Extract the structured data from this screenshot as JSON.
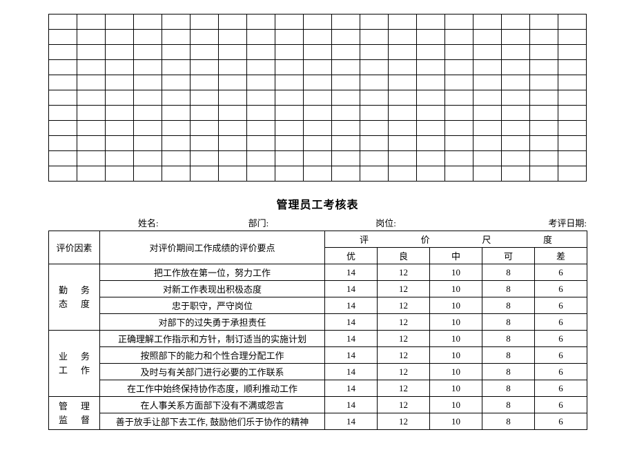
{
  "emptyGrid": {
    "rows": 11,
    "cols": 19,
    "border_color": "#000000",
    "background_color": "#ffffff"
  },
  "title": "管理员工考核表",
  "headerFields": {
    "name_label": "姓名:",
    "dept_label": "部门:",
    "post_label": "岗位:",
    "date_label": "考评日期:"
  },
  "mainTable": {
    "col_factor_label": "评价因素",
    "col_desc_label": "对评价期间工作成绩的评价要点",
    "scale_header": "评　价　尺　度",
    "scale_labels": [
      "优",
      "良",
      "中",
      "可",
      "差"
    ],
    "sections": [
      {
        "factor_lines": [
          "勤　务",
          "态　度"
        ],
        "rows": [
          {
            "desc": "把工作放在第一位，努力工作",
            "scores": [
              14,
              12,
              10,
              8,
              6
            ]
          },
          {
            "desc": "对新工作表现出积极态度",
            "scores": [
              14,
              12,
              10,
              8,
              6
            ]
          },
          {
            "desc": "忠于职守，严守岗位",
            "scores": [
              14,
              12,
              10,
              8,
              6
            ]
          },
          {
            "desc": "对部下的过失勇于承担责任",
            "scores": [
              14,
              12,
              10,
              8,
              6
            ]
          }
        ]
      },
      {
        "factor_lines": [
          "业　务",
          "工　作"
        ],
        "rows": [
          {
            "desc": "正确理解工作指示和方针，制订适当的实施计划",
            "scores": [
              14,
              12,
              10,
              8,
              6
            ]
          },
          {
            "desc": "按照部下的能力和个性合理分配工作",
            "scores": [
              14,
              12,
              10,
              8,
              6
            ]
          },
          {
            "desc": "及时与有关部门进行必要的工作联系",
            "scores": [
              14,
              12,
              10,
              8,
              6
            ]
          },
          {
            "desc": "在工作中始终保持协作态度，顺利推动工作",
            "scores": [
              14,
              12,
              10,
              8,
              6
            ]
          }
        ]
      },
      {
        "factor_lines": [
          "管　理",
          "监　督"
        ],
        "rows": [
          {
            "desc": "在人事关系方面部下没有不满或怨言",
            "scores": [
              14,
              12,
              10,
              8,
              6
            ]
          },
          {
            "desc": "善于放手让部下去工作, 鼓励他们乐于协作的精神",
            "scores": [
              14,
              12,
              10,
              8,
              6
            ]
          }
        ]
      }
    ]
  }
}
